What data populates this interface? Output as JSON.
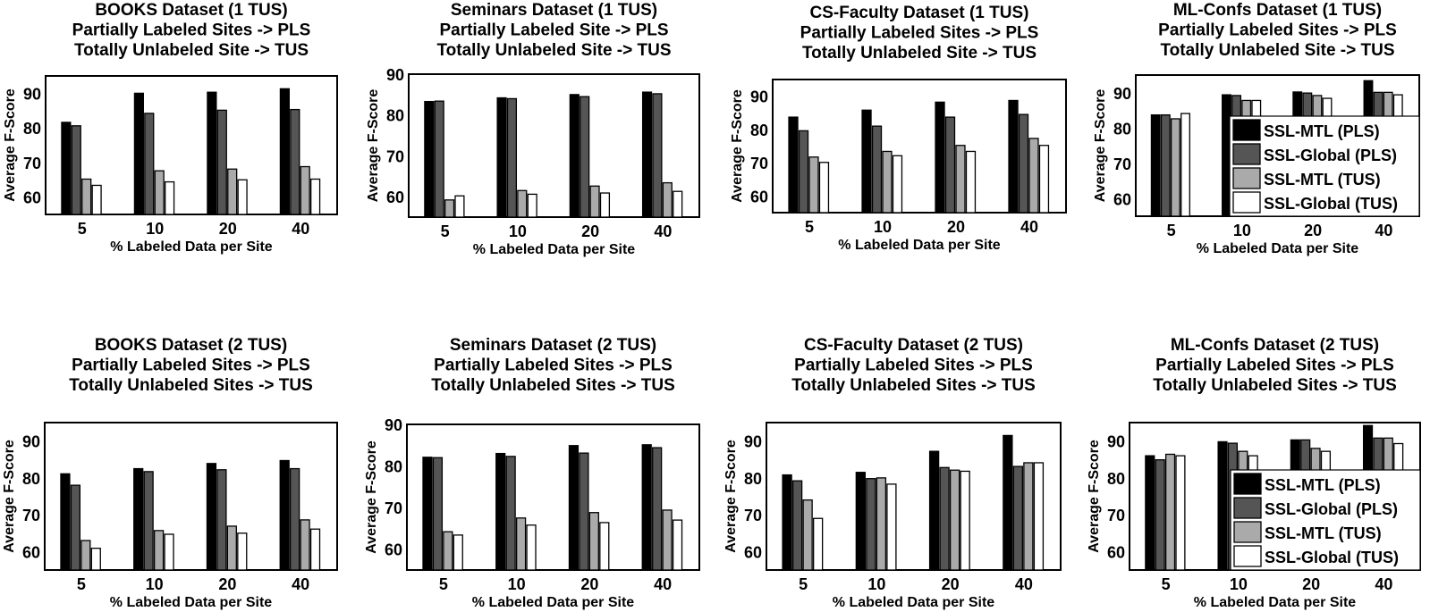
{
  "legend": {
    "entries": [
      "SSL-MTL (PLS)",
      "SSL-Global (PLS)",
      "SSL-MTL (TUS)",
      "SSL-Global (TUS)"
    ],
    "colors": [
      "#000000",
      "#555555",
      "#aaaaaa",
      "#ffffff"
    ]
  },
  "chart_data": [
    {
      "type": "bar",
      "title": [
        "BOOKS Dataset (1 TUS)",
        "Partially Labeled Sites -> PLS",
        "Totally Unlabeled Site -> TUS"
      ],
      "xlabel": "% Labeled Data per Site",
      "ylabel": "Average F-Score",
      "categories": [
        "5",
        "10",
        "20",
        "40"
      ],
      "yticks": [
        60,
        70,
        80,
        90
      ],
      "ylim": [
        55,
        95
      ],
      "legend": false,
      "series": [
        {
          "name": "SSL-MTL (PLS)",
          "values": [
            81.6,
            90.0,
            90.3,
            91.3
          ]
        },
        {
          "name": "SSL-Global (PLS)",
          "values": [
            80.6,
            84.2,
            85.1,
            85.3
          ]
        },
        {
          "name": "SSL-MTL (TUS)",
          "values": [
            65.2,
            67.6,
            68.1,
            68.8
          ]
        },
        {
          "name": "SSL-Global (TUS)",
          "values": [
            63.4,
            64.4,
            65.0,
            65.2
          ]
        }
      ]
    },
    {
      "type": "bar",
      "title": [
        "Seminars Dataset (1 TUS)",
        "Partially Labeled Site -> PLS",
        "Totally Unlabeled Site -> TUS"
      ],
      "xlabel": "% Labeled Data per Site",
      "ylabel": "Average F-Score",
      "categories": [
        "5",
        "10",
        "20",
        "40"
      ],
      "yticks": [
        60,
        70,
        80,
        90
      ],
      "ylim": [
        55,
        90
      ],
      "legend": false,
      "series": [
        {
          "name": "SSL-MTL (PLS)",
          "values": [
            83.3,
            84.2,
            85.0,
            85.6
          ]
        },
        {
          "name": "SSL-Global (PLS)",
          "values": [
            83.4,
            84.0,
            84.5,
            85.2
          ]
        },
        {
          "name": "SSL-MTL (TUS)",
          "values": [
            59.2,
            61.5,
            62.6,
            63.4
          ]
        },
        {
          "name": "SSL-Global (TUS)",
          "values": [
            60.2,
            60.6,
            60.9,
            61.3
          ]
        }
      ]
    },
    {
      "type": "bar",
      "title": [
        "CS-Faculty Dataset (1 TUS)",
        "Partially Labeled Sites -> PLS",
        "Totally Unlabeled Site -> TUS"
      ],
      "xlabel": "% Labeled Data per Site",
      "ylabel": "Average F-Score",
      "categories": [
        "5",
        "10",
        "20",
        "40"
      ],
      "yticks": [
        60,
        70,
        80,
        90
      ],
      "ylim": [
        55,
        95
      ],
      "legend": false,
      "series": [
        {
          "name": "SSL-MTL (PLS)",
          "values": [
            83.7,
            85.8,
            88.2,
            88.7
          ]
        },
        {
          "name": "SSL-Global (PLS)",
          "values": [
            79.6,
            81.0,
            83.7,
            84.5
          ]
        },
        {
          "name": "SSL-MTL (TUS)",
          "values": [
            71.7,
            73.4,
            75.2,
            77.3
          ]
        },
        {
          "name": "SSL-Global (TUS)",
          "values": [
            70.1,
            72.1,
            73.4,
            75.2
          ]
        }
      ]
    },
    {
      "type": "bar",
      "title": [
        "ML-Confs Dataset (1 TUS)",
        "Partially Labeled Sites -> PLS",
        "Totally Unlabeled Site -> TUS"
      ],
      "xlabel": "% Labeled Data per Site",
      "ylabel": "Average F-Score",
      "categories": [
        "5",
        "10",
        "20",
        "40"
      ],
      "yticks": [
        60,
        70,
        80,
        90
      ],
      "ylim": [
        55,
        95
      ],
      "legend": "bottom-right",
      "series": [
        {
          "name": "SSL-MTL (PLS)",
          "values": [
            83.7,
            89.4,
            90.2,
            93.4
          ]
        },
        {
          "name": "SSL-Global (PLS)",
          "values": [
            83.7,
            89.2,
            89.9,
            90.1
          ]
        },
        {
          "name": "SSL-MTL (TUS)",
          "values": [
            82.6,
            87.8,
            89.2,
            90.1
          ]
        },
        {
          "name": "SSL-Global (TUS)",
          "values": [
            84.1,
            87.8,
            88.4,
            89.4
          ]
        }
      ]
    },
    {
      "type": "bar",
      "title": [
        "BOOKS Dataset (2 TUS)",
        "Partially Labeled Sites -> PLS",
        "Totally  Unlabeled Sites -> TUS"
      ],
      "xlabel": "% Labeled Data per Site",
      "ylabel": "Average F-Score",
      "categories": [
        "5",
        "10",
        "20",
        "40"
      ],
      "yticks": [
        60,
        70,
        80,
        90
      ],
      "ylim": [
        55,
        95
      ],
      "legend": false,
      "series": [
        {
          "name": "SSL-MTL (PLS)",
          "values": [
            81.1,
            82.5,
            83.9,
            84.7
          ]
        },
        {
          "name": "SSL-Global (PLS)",
          "values": [
            78.0,
            81.7,
            82.2,
            82.5
          ]
        },
        {
          "name": "SSL-MTL (TUS)",
          "values": [
            63.0,
            65.7,
            66.9,
            68.6
          ]
        },
        {
          "name": "SSL-Global (TUS)",
          "values": [
            60.9,
            64.7,
            65.0,
            66.1
          ]
        }
      ]
    },
    {
      "type": "bar",
      "title": [
        "Seminars Dataset (2 TUS)",
        "Partially Labeled Sites -> PLS",
        "Totally Unlabeled Sites -> TUS"
      ],
      "xlabel": "% Labeled Data per Site",
      "ylabel": "Average F-Score",
      "categories": [
        "5",
        "10",
        "20",
        "40"
      ],
      "yticks": [
        60,
        70,
        80,
        90
      ],
      "ylim": [
        55,
        90
      ],
      "legend": false,
      "series": [
        {
          "name": "SSL-MTL (PLS)",
          "values": [
            82.1,
            83.0,
            84.9,
            85.1
          ]
        },
        {
          "name": "SSL-Global (PLS)",
          "values": [
            82.0,
            82.3,
            83.1,
            84.4
          ]
        },
        {
          "name": "SSL-MTL (TUS)",
          "values": [
            64.2,
            67.5,
            68.8,
            69.4
          ]
        },
        {
          "name": "SSL-Global (TUS)",
          "values": [
            63.4,
            65.8,
            66.4,
            67.0
          ]
        }
      ]
    },
    {
      "type": "bar",
      "title": [
        "CS-Faculty Dataset (2 TUS)",
        "Partially Labeled Sites -> PLS",
        "Totally Unlabeled Sites -> TUS"
      ],
      "xlabel": "% Labeled Data per Site",
      "ylabel": "Average F-Score",
      "categories": [
        "5",
        "10",
        "20",
        "40"
      ],
      "yticks": [
        60,
        70,
        80,
        90
      ],
      "ylim": [
        55,
        95
      ],
      "legend": false,
      "series": [
        {
          "name": "SSL-MTL (PLS)",
          "values": [
            80.8,
            81.5,
            87.2,
            91.5
          ]
        },
        {
          "name": "SSL-Global (PLS)",
          "values": [
            79.2,
            79.8,
            82.8,
            83.1
          ]
        },
        {
          "name": "SSL-MTL (TUS)",
          "values": [
            74.0,
            80.0,
            82.1,
            84.1
          ]
        },
        {
          "name": "SSL-Global (TUS)",
          "values": [
            69.0,
            78.3,
            81.8,
            84.1
          ]
        }
      ]
    },
    {
      "type": "bar",
      "title": [
        "ML-Confs Dataset (2 TUS)",
        "Partially Labeled Sites -> PLS",
        "Totally Unlabeled Sites -> TUS"
      ],
      "xlabel": "% Labeled Data per Site",
      "ylabel": "Average F-Score",
      "categories": [
        "5",
        "10",
        "20",
        "40"
      ],
      "yticks": [
        60,
        70,
        80,
        90
      ],
      "ylim": [
        55,
        95
      ],
      "legend": "bottom-right",
      "series": [
        {
          "name": "SSL-MTL (PLS)",
          "values": [
            86.0,
            89.8,
            90.3,
            94.2
          ]
        },
        {
          "name": "SSL-Global (PLS)",
          "values": [
            84.9,
            89.4,
            90.3,
            90.8
          ]
        },
        {
          "name": "SSL-MTL (TUS)",
          "values": [
            86.4,
            87.2,
            88.0,
            90.8
          ]
        },
        {
          "name": "SSL-Global (TUS)",
          "values": [
            86.0,
            86.0,
            87.2,
            89.3
          ]
        }
      ]
    }
  ]
}
